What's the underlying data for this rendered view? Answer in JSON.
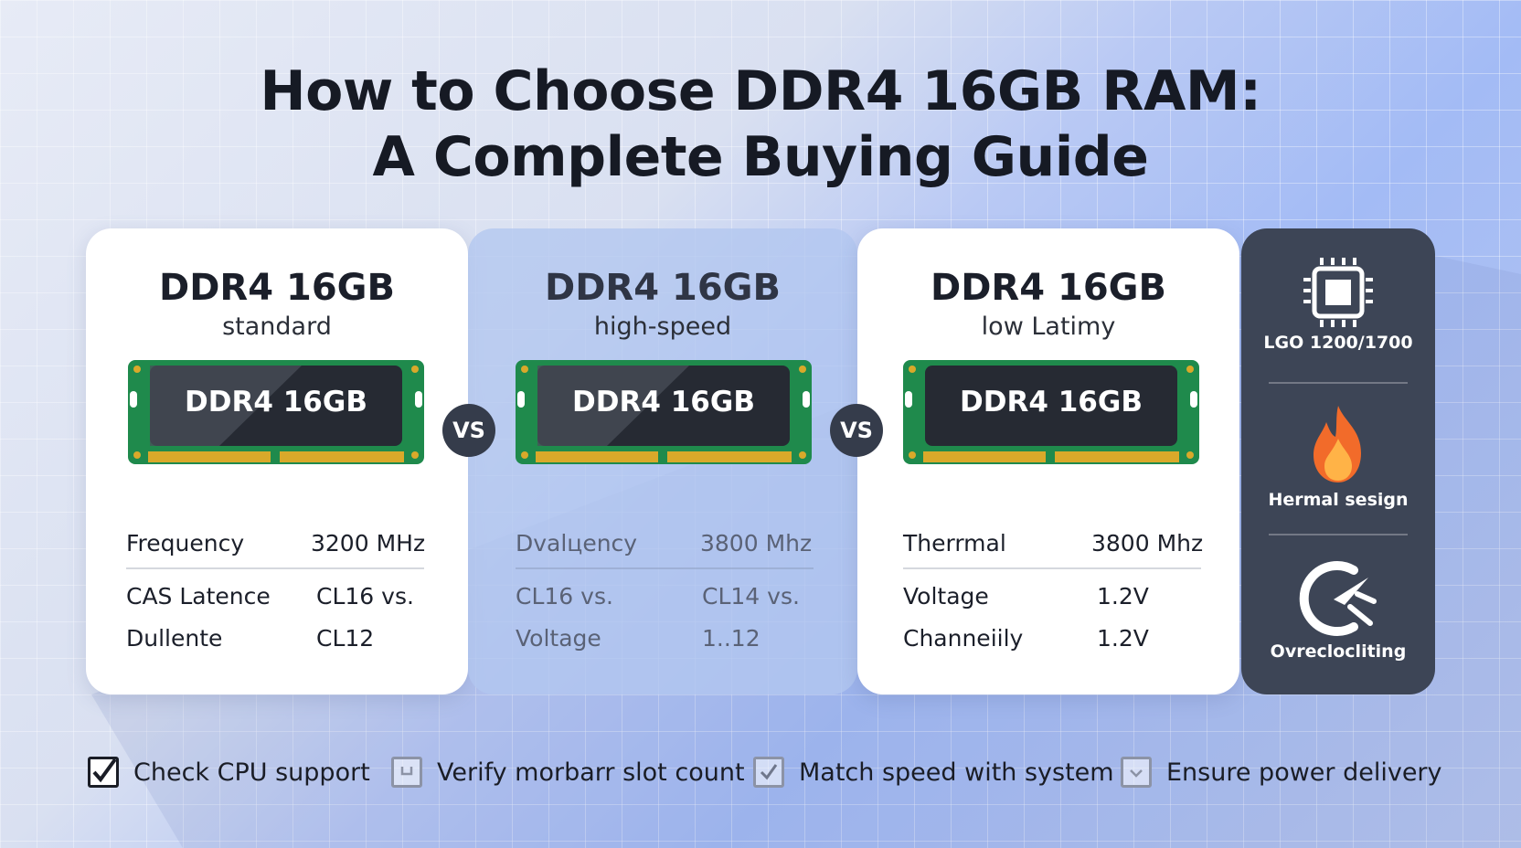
{
  "title": {
    "line1": "How to Choose DDR4 16GB RAM:",
    "line2": "A Complete Buying Guide"
  },
  "cards": [
    {
      "title": "DDR4 16GB",
      "subtitle": "standard",
      "module_label": "DDR4 16GB",
      "specs": [
        {
          "key": "Frequency",
          "value": "3200 MHz"
        },
        {
          "key": "CAS Latence",
          "value": "CL16 vs."
        },
        {
          "key": "Dullente",
          "value": "CL12"
        }
      ]
    },
    {
      "title": "DDR4 16GB",
      "subtitle": "high-speed",
      "module_label": "DDR4 16GB",
      "specs": [
        {
          "key": "Dvalцency",
          "value": "3800 Mhz"
        },
        {
          "key": "CL16 vs.",
          "value": "CL14 vs."
        },
        {
          "key": "Voltage",
          "value": "1..12"
        }
      ]
    },
    {
      "title": "DDR4 16GB",
      "subtitle": "low Latimy",
      "module_label": "DDR4 16GB",
      "specs": [
        {
          "key": "Therrmal",
          "value": "3800 Mhz"
        },
        {
          "key": "Voltage",
          "value": "1.2V"
        },
        {
          "key": "Channeiily",
          "value": "1.2V"
        }
      ]
    }
  ],
  "vs_labels": [
    "VS",
    "VS"
  ],
  "sidebar": {
    "items": [
      {
        "icon": "cpu-chip-icon",
        "label": "LGO 1200/1700"
      },
      {
        "icon": "flame-icon",
        "label": "Hermal sesign"
      },
      {
        "icon": "overclock-gauge-icon",
        "label": "Ovreclocliting"
      }
    ]
  },
  "checklist": [
    {
      "label": "Check CPU support",
      "checked": true
    },
    {
      "label": "Verify morbarr slot count",
      "checked": false
    },
    {
      "label": "Match speed with system",
      "checked": true
    },
    {
      "label": "Ensure power delivery",
      "checked": false
    }
  ],
  "colors": {
    "pcb_green": "#1f8a4c",
    "gold_contacts": "#d9a92a",
    "chip_dark": "#262a33",
    "sidebar_bg": "#3d4556",
    "flame_orange": "#f26b2a"
  }
}
